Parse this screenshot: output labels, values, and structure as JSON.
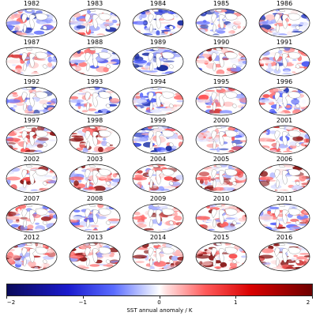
{
  "figure": {
    "years": [
      "1982",
      "1983",
      "1984",
      "1985",
      "1986",
      "1987",
      "1988",
      "1989",
      "1990",
      "1991",
      "1992",
      "1993",
      "1994",
      "1995",
      "1996",
      "1997",
      "1998",
      "1999",
      "2000",
      "2001",
      "2002",
      "2003",
      "2004",
      "2005",
      "2006",
      "2007",
      "2008",
      "2009",
      "2010",
      "2011",
      "2012",
      "2013",
      "2014",
      "2015",
      "2016"
    ],
    "grid_columns": 5,
    "grid_rows": 7,
    "projection": "Mollweide",
    "warm_bias_by_year": [
      -0.25,
      -0.1,
      -0.3,
      -0.3,
      -0.2,
      0.05,
      -0.15,
      -0.35,
      0.1,
      0.0,
      -0.3,
      -0.15,
      -0.05,
      0.05,
      -0.05,
      0.35,
      0.45,
      -0.15,
      -0.05,
      0.15,
      0.25,
      0.3,
      0.3,
      0.35,
      0.3,
      0.15,
      0.0,
      0.3,
      0.35,
      0.1,
      0.2,
      0.3,
      0.45,
      0.6,
      0.5
    ],
    "colorbar": {
      "label": "SST annual anomaly / K",
      "min": -2,
      "max": 2,
      "ticks": [
        -2,
        -1,
        0,
        1,
        2
      ],
      "tick_labels": [
        "−2",
        "−1",
        "0",
        "1",
        "2"
      ],
      "colors": {
        "low": "#0a0a5a",
        "mid": "#ffffff",
        "high": "#6e0000"
      }
    }
  }
}
